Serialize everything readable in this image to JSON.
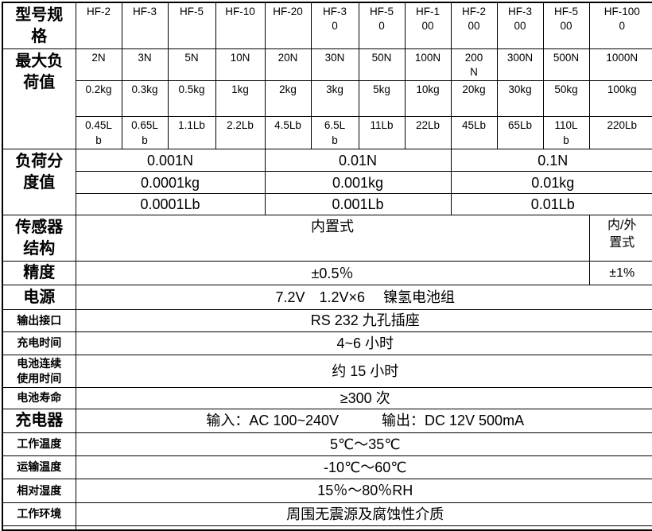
{
  "table": {
    "header": {
      "label": "型号规\n格",
      "models": [
        "HF-2",
        "HF-3",
        "HF-5",
        "HF-10",
        "HF-20",
        "HF-3\n0",
        "HF-5\n0",
        "HF-1\n00",
        "HF-2\n00",
        "HF-3\n00",
        "HF-5\n00",
        "HF-100\n0"
      ]
    },
    "max_load": {
      "label": "最大负\n荷值",
      "newton": [
        "2N",
        "3N",
        "5N",
        "10N",
        "20N",
        "30N",
        "50N",
        "100N",
        "200\nN",
        "300N",
        "500N",
        "1000N"
      ],
      "kg": [
        "0.2kg",
        "0.3kg",
        "0.5kg",
        "1kg",
        "2kg",
        "3kg",
        "5kg",
        "10kg",
        "20kg",
        "30kg",
        "50kg",
        "100kg"
      ],
      "lb": [
        "0.45L\nb",
        "0.65L\nb",
        "1.1Lb",
        "2.2Lb",
        "4.5Lb",
        "6.5L\nb",
        "11Lb",
        "22Lb",
        "45Lb",
        "65Lb",
        "110L\nb",
        "220Lb"
      ]
    },
    "resolution": {
      "label": "负荷分\n度值",
      "newton": [
        "0.001N",
        "0.01N",
        "0.1N"
      ],
      "kg": [
        "0.0001kg",
        "0.001kg",
        "0.01kg"
      ],
      "lb": [
        "0.0001Lb",
        "0.001Lb",
        "0.01Lb"
      ]
    },
    "sensor": {
      "label": "传感器\n结构",
      "value": "内置式",
      "last_col": "内/外\n置式"
    },
    "accuracy": {
      "label": "精度",
      "value": "±0.5％",
      "last_col": "±1%"
    },
    "power": {
      "label": "电源",
      "value": "7.2V　1.2V×6　 镍氢电池组"
    },
    "output": {
      "label": "输出接口",
      "value": "RS 232 九孔插座"
    },
    "charge_time": {
      "label": "充电时间",
      "value": "4~6 小时"
    },
    "battery_use": {
      "label": "电池连续\n使用时间",
      "value": "约 15 小时"
    },
    "battery_life": {
      "label": "电池寿命",
      "value": "≥300 次"
    },
    "charger": {
      "label": "充电器",
      "value": "输入：AC 100~240V　　　输出：DC 12V 500mA"
    },
    "work_temp": {
      "label": "工作温度",
      "value": "5℃～35℃"
    },
    "transport_temp": {
      "label": "运输温度",
      "value": "-10℃～60℃"
    },
    "humidity": {
      "label": "相对湿度",
      "value": "15％～80％RH"
    },
    "environment": {
      "label": "工作环境",
      "value": "周围无震源及腐蚀性介质"
    }
  }
}
